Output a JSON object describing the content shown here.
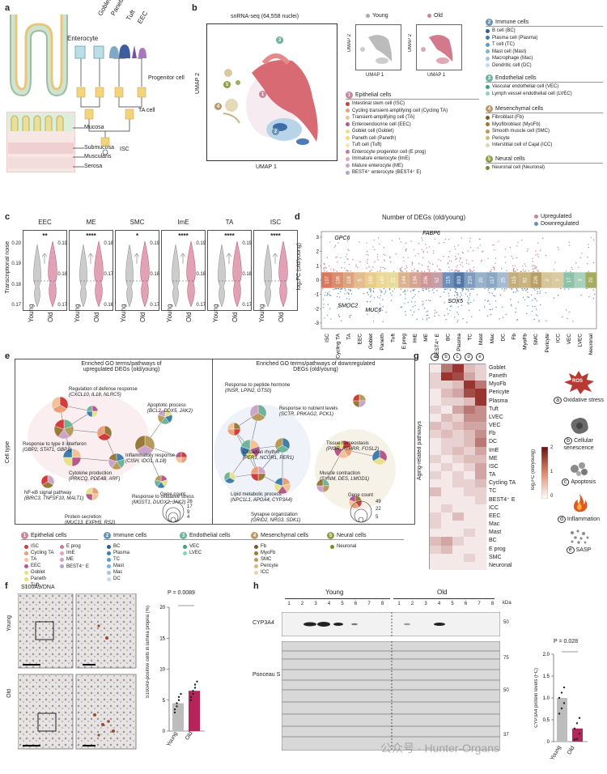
{
  "panel_labels": {
    "a": "a",
    "b": "b",
    "c": "c",
    "d": "d",
    "e": "e",
    "f": "f",
    "g": "g",
    "h": "h"
  },
  "panel_a": {
    "top_labels": [
      "Enterocyte",
      "Goblet",
      "Paneth",
      "Tuft",
      "EEC"
    ],
    "progenitor": "Progenitor cell",
    "ta": "TA cell",
    "isc": "ISC",
    "layers": [
      "Mucosa",
      "Submucosa",
      "Muscularis",
      "Serosa"
    ]
  },
  "panel_b": {
    "umap_title": "snRNA-seq (64,558 nuclei)",
    "axis_x": "UMAP 1",
    "axis_y": "UMAP 2",
    "young": "Young",
    "old": "Old",
    "cluster_nums": [
      "1",
      "2",
      "3",
      "4",
      "5"
    ],
    "groups": [
      {
        "num": "1",
        "name": "Epithelial cells",
        "color": "#c9869b",
        "items": [
          "Intestinal stem cell (ISC)",
          "Cycling transient-amplifying cell (Cycling TA)",
          "Transient-amplifying cell (TA)",
          "Enteroendocrine cell (EEC)",
          "Goblet cell (Goblet)",
          "Paneth cell (Paneth)",
          "Tuft cell (Tuft)",
          "Enterocyte progenitor cell (E prog)",
          "Immature enterocyte (ImE)",
          "Mature enterocyte (ME)",
          "BEST4⁺ enterocyte (BEST4⁺ E)"
        ],
        "dots": [
          "#d13c3c",
          "#e9a07a",
          "#f2c299",
          "#b65a8c",
          "#e6e08a",
          "#f6d96e",
          "#efe8b0",
          "#c97b9c",
          "#d9a8bd",
          "#caa5c9",
          "#b2a3d4"
        ]
      },
      {
        "num": "2",
        "name": "Immune cells",
        "color": "#6a93b0",
        "items": [
          "B cell (BC)",
          "Plasma cell (Plasma)",
          "T cell (TC)",
          "Mast cell (Mast)",
          "Macrophage (Mac)",
          "Dendritic cell (DC)"
        ],
        "dots": [
          "#2d5f93",
          "#3f7fae",
          "#5f9cc4",
          "#7fb2d2",
          "#a1c6df",
          "#c3dbec"
        ]
      },
      {
        "num": "3",
        "name": "Endothelial cells",
        "color": "#6fb39a",
        "items": [
          "Vascular endothelial cell (VEC)",
          "Lymph vessel endothelial cell (LVEC)"
        ],
        "dots": [
          "#3f9f7f",
          "#8fd0b8"
        ]
      },
      {
        "num": "4",
        "name": "Mesenchymal cells",
        "color": "#b89a6a",
        "items": [
          "Fibroblast (Fb)",
          "Myofibroblast (MyoFb)",
          "Smooth muscle cell (SMC)",
          "Pericyte",
          "Interstitial cell of Cajal (ICC)"
        ],
        "dots": [
          "#7a5a2a",
          "#9a7a3a",
          "#b89a5a",
          "#d0bb82",
          "#e3d5aa"
        ]
      },
      {
        "num": "5",
        "name": "Neural cells",
        "color": "#8f9a4a",
        "items": [
          "Neuronal cell (Neuronal)"
        ],
        "dots": [
          "#7a8a2a"
        ]
      }
    ]
  },
  "panel_c": {
    "ylabel": "Transcriptional noise",
    "legend_x": [
      "Young",
      "Old"
    ],
    "panels": [
      {
        "title": "EEC",
        "sig": "**",
        "ticks": [
          "0.20",
          "0.19",
          "0.18",
          "0.17"
        ]
      },
      {
        "title": "ME",
        "sig": "****",
        "ticks": [
          "0.19",
          "0.18",
          "0.17"
        ]
      },
      {
        "title": "SMC",
        "sig": "*",
        "ticks": [
          "0.18",
          "0.17",
          "0.16"
        ]
      },
      {
        "title": "ImE",
        "sig": "****",
        "ticks": [
          "0.19",
          "0.18",
          "0.17"
        ]
      },
      {
        "title": "TA",
        "sig": "****",
        "ticks": [
          "0.19",
          "0.18",
          "0.17"
        ]
      },
      {
        "title": "ISC",
        "sig": "****",
        "ticks": [
          "0.19",
          "0.18",
          "0.17"
        ]
      }
    ]
  },
  "panel_d": {
    "title": "Number of DEGs (old/young)",
    "ylabel": "log₂FC (old/young)",
    "legend": [
      "Upregulated",
      "Downregulated"
    ],
    "yticks": [
      "3",
      "2",
      "1",
      "0",
      "-1",
      "-2",
      "-3"
    ],
    "genes": [
      "GPC6",
      "FABP6",
      "SMOC2",
      "MUC6",
      "SOX5"
    ],
    "categories": [
      "ISC",
      "Cycling TA",
      "TA",
      "EEC",
      "Goblet",
      "Paneth",
      "Tuft",
      "E prog",
      "ImE",
      "ME",
      "BEST4⁺ E",
      "BC",
      "Plasma",
      "TC",
      "Mast",
      "Mac",
      "DC",
      "Fb",
      "MyoFb",
      "SMC",
      "Pericyte",
      "ICC",
      "VEC",
      "LVEC",
      "Neuronal"
    ],
    "counts": [
      "107",
      "106",
      "118",
      "5",
      "169",
      "140",
      "22",
      "144",
      "134",
      "206",
      "52",
      "115",
      "893",
      "210",
      "20",
      "117",
      "25",
      "115",
      "82",
      "226",
      "2",
      "7",
      "17",
      "3",
      "20"
    ],
    "colors": [
      "#d9775f",
      "#d98f6f",
      "#dba37e",
      "#e3bd8e",
      "#e8cd8f",
      "#ebd796",
      "#e8db9e",
      "#dcb38f",
      "#d7a394",
      "#cf9698",
      "#c79da6",
      "#6f8fb8",
      "#4f78a8",
      "#7f9cbe",
      "#99b1c9",
      "#8ba8c3",
      "#a8bcd1",
      "#c4ad7a",
      "#c9b47f",
      "#b79f6a",
      "#d5c59a",
      "#d9ca9f",
      "#8cc2aa",
      "#a8d2be",
      "#a6ab62"
    ]
  },
  "panel_e": {
    "ylabel": "Cell type",
    "left_title": "Enriched GO terms/pathways of upregulated DEGs (old/young)",
    "right_title": "Enriched GO terms/pathways of downregulated DEGs (old/young)",
    "left_terms": [
      {
        "name": "Regulation of defense response",
        "genes": "(CXCL10, IL18, NLRC5)"
      },
      {
        "name": "Apoptotic process",
        "genes": "(BCL2, DDX5, JAK2)"
      },
      {
        "name": "Response to type II interferon",
        "genes": "(GBP2, STAT1, GBP1)"
      },
      {
        "name": "Inflammatory response",
        "genes": "(CISH, IDO1, IL18)"
      },
      {
        "name": "Cytokine production",
        "genes": "(PRKCQ, PDE4B, ARF)"
      },
      {
        "name": "NF-κB signal pathway",
        "genes": "(BIRC3, TNFSF10, MALT1)"
      },
      {
        "name": "Response to oxidative stress",
        "genes": "(MGST1, DUOX2, JAK2)"
      },
      {
        "name": "Protein secretion",
        "genes": "(MUC13, EXPH5, RS2)"
      }
    ],
    "right_terms": [
      {
        "name": "Response to peptide hormone",
        "genes": "(INSR, LPIN2, GTS0)"
      },
      {
        "name": "Response to nutrient levels",
        "genes": "(SCTR, PRKAG2, PCK1)"
      },
      {
        "name": "Tissue homeostasis",
        "genes": "(PIGR, PTHRR, FOSL2)"
      },
      {
        "name": "Circadian rhythm",
        "genes": "(PER1, NCOR1, PER1)"
      },
      {
        "name": "Muscle contraction",
        "genes": "(SYNM, DES, LMOD1)"
      },
      {
        "name": "Lipid metabolic process",
        "genes": "(NPC1L1, APOA4, CYP3A4)"
      },
      {
        "name": "Synapse organization",
        "genes": "(GRID2, NRG3, SDK1)"
      }
    ],
    "gene_count_title": "Gene count",
    "left_counts": [
      "26",
      "17",
      "9",
      "4"
    ],
    "right_counts": [
      "49",
      "22",
      "5"
    ],
    "legend_groups": [
      {
        "num": "1",
        "name": "Epithelial cells",
        "color": "#c9869b",
        "col1": [
          "ISC",
          "Cycling TA",
          "TA",
          "EEC",
          "Goblet",
          "Paneth",
          "Tuft"
        ],
        "col2": [
          "E prog",
          "ImE",
          "ME",
          "BEST4⁺ E"
        ],
        "dots1": [
          "#d13c3c",
          "#e9a07a",
          "#f2c299",
          "#b65a8c",
          "#e6e08a",
          "#f6d96e",
          "#efe8b0"
        ],
        "dots2": [
          "#c97b9c",
          "#d9a8bd",
          "#caa5c9",
          "#b2a3d4"
        ]
      },
      {
        "num": "2",
        "name": "Immune cells",
        "color": "#6a93b0",
        "col1": [
          "BC",
          "Plasma",
          "TC",
          "Mast",
          "Mac",
          "DC"
        ],
        "col2": [],
        "dots1": [
          "#2d5f93",
          "#3f7fae",
          "#5f9cc4",
          "#7fb2d2",
          "#a1c6df",
          "#c3dbec"
        ],
        "dots2": []
      },
      {
        "num": "3",
        "name": "Endothelial cells",
        "color": "#6fb39a",
        "col1": [
          "VEC",
          "LVEC"
        ],
        "col2": [],
        "dots1": [
          "#3f9f7f",
          "#8fd0b8"
        ],
        "dots2": []
      },
      {
        "num": "4",
        "name": "Mesenchymal cells",
        "color": "#b89a6a",
        "col1": [
          "Fb",
          "MyoFb",
          "SMC",
          "Pericyte",
          "ICC"
        ],
        "col2": [],
        "dots1": [
          "#7a5a2a",
          "#9a7a3a",
          "#b89a5a",
          "#d0bb82",
          "#e3d5aa"
        ],
        "dots2": []
      },
      {
        "num": "5",
        "name": "Neural cells",
        "color": "#8f9a4a",
        "col1": [
          "Neuronal"
        ],
        "col2": [],
        "dots1": [
          "#7a8a2a"
        ],
        "dots2": []
      }
    ]
  },
  "panel_g": {
    "ylabel": "Aging-related pathways",
    "col_letters": [
      "a",
      "b",
      "c",
      "d",
      "e"
    ],
    "rows": [
      "Goblet",
      "Paneth",
      "MyoFb",
      "Pericyte",
      "Plasma",
      "Tuft",
      "LVEC",
      "VEC",
      "Fb",
      "DC",
      "ImE",
      "ME",
      "ISC",
      "TA",
      "Cycling TA",
      "TC",
      "BEST4⁺ E",
      "ICC",
      "EEC",
      "Mac",
      "Mast",
      "BC",
      "E prog",
      "SMC",
      "Neuronal"
    ],
    "colorbar_label": "log₂FC (old/young)",
    "colorbar_ticks": [
      "2",
      "1",
      "0"
    ],
    "pathways": [
      {
        "letter": "a",
        "name": "Oxidative stress"
      },
      {
        "letter": "b",
        "name": "Cellular senescence"
      },
      {
        "letter": "c",
        "name": "Apoptosis"
      },
      {
        "letter": "d",
        "name": "Inflammation"
      },
      {
        "letter": "e",
        "name": "SASP"
      }
    ],
    "ros": "ROS"
  },
  "panel_f": {
    "title": "S100A9/DNA",
    "rows": [
      "Young",
      "Old"
    ],
    "ylabel": "S100A9-positive cells in lamina propria (%)",
    "pvalue": "P = 0.0089",
    "yticks": [
      "20",
      "15",
      "10",
      "5",
      "0"
    ],
    "xlabels": [
      "Young",
      "Old"
    ],
    "values": [
      4.5,
      6.5
    ]
  },
  "panel_h": {
    "group_labels": [
      "Young",
      "Old"
    ],
    "lane_numbers": [
      "1",
      "2",
      "3",
      "4",
      "5",
      "6",
      "7",
      "8",
      "1",
      "2",
      "3",
      "4",
      "5",
      "6",
      "7",
      "8"
    ],
    "kda": "kDa",
    "rows": [
      "CYP3A4",
      "Ponceau S"
    ],
    "markers_top": [
      "50"
    ],
    "markers_bottom": [
      "75",
      "50",
      "37"
    ],
    "ylabel": "CYP3A4 protein levels (FC)",
    "pvalue": "P = 0.028",
    "yticks": [
      "2.0",
      "1.5",
      "1.0",
      "0.5",
      "0"
    ],
    "xlabels": [
      "Young",
      "Old"
    ],
    "values": [
      1.0,
      0.3
    ]
  },
  "watermark": "公众号 · Hunter-Organs"
}
